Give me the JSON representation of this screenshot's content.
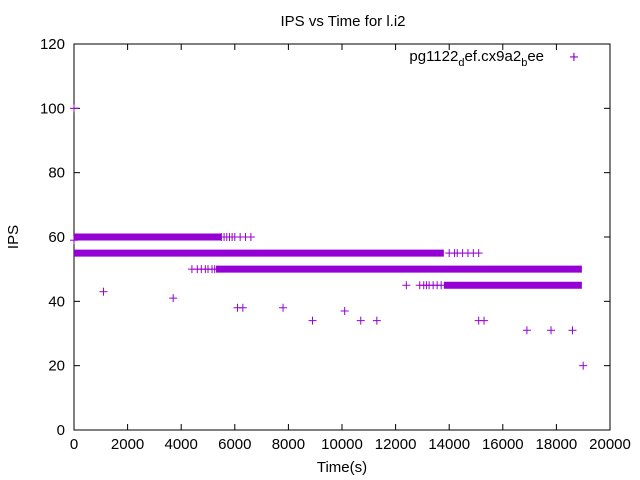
{
  "chart_data": {
    "type": "scatter",
    "title": "IPS vs Time for l.i2",
    "xlabel": "Time(s)",
    "ylabel": "IPS",
    "xlim": [
      0,
      20000
    ],
    "ylim": [
      0,
      120
    ],
    "xticks": [
      0,
      2000,
      4000,
      6000,
      8000,
      10000,
      12000,
      14000,
      16000,
      18000,
      20000
    ],
    "yticks": [
      0,
      20,
      40,
      60,
      80,
      100,
      120
    ],
    "grid": false,
    "legend_position": "top-right",
    "marker": "plus",
    "color": "#9400d3",
    "series": [
      {
        "name_parts": {
          "base": "pg1122",
          "sub1": "d",
          "mid": "ef.cx9a2",
          "sub2": "b",
          "end": "ee"
        },
        "bands": [
          {
            "y": 60,
            "x_from": 0,
            "x_to": 5500
          },
          {
            "y": 55,
            "x_from": 0,
            "x_to": 13800
          },
          {
            "y": 50,
            "x_from": 5300,
            "x_to": 18950
          },
          {
            "y": 45,
            "x_from": 13800,
            "x_to": 18950
          }
        ],
        "points": [
          [
            0,
            100
          ],
          [
            0,
            59
          ],
          [
            1100,
            43
          ],
          [
            3700,
            41
          ],
          [
            5500,
            60
          ],
          [
            5600,
            60
          ],
          [
            5700,
            60
          ],
          [
            5800,
            60
          ],
          [
            5900,
            60
          ],
          [
            6000,
            60
          ],
          [
            6200,
            60
          ],
          [
            6400,
            60
          ],
          [
            6600,
            60
          ],
          [
            4400,
            50
          ],
          [
            4600,
            50
          ],
          [
            4750,
            50
          ],
          [
            4900,
            50
          ],
          [
            5000,
            50
          ],
          [
            5150,
            50
          ],
          [
            5250,
            50
          ],
          [
            12400,
            45
          ],
          [
            12900,
            45
          ],
          [
            13050,
            45
          ],
          [
            13150,
            45
          ],
          [
            13250,
            45
          ],
          [
            13400,
            45
          ],
          [
            13550,
            45
          ],
          [
            13700,
            45
          ],
          [
            14000,
            55
          ],
          [
            14200,
            55
          ],
          [
            14300,
            55
          ],
          [
            14500,
            55
          ],
          [
            14700,
            55
          ],
          [
            14900,
            55
          ],
          [
            15100,
            55
          ],
          [
            6100,
            38
          ],
          [
            6300,
            38
          ],
          [
            7800,
            38
          ],
          [
            8900,
            34
          ],
          [
            10100,
            37
          ],
          [
            10700,
            34
          ],
          [
            11300,
            34
          ],
          [
            15100,
            34
          ],
          [
            15300,
            34
          ],
          [
            16900,
            31
          ],
          [
            17800,
            31
          ],
          [
            18600,
            31
          ],
          [
            19000,
            20
          ],
          [
            18650,
            116
          ]
        ]
      }
    ]
  }
}
